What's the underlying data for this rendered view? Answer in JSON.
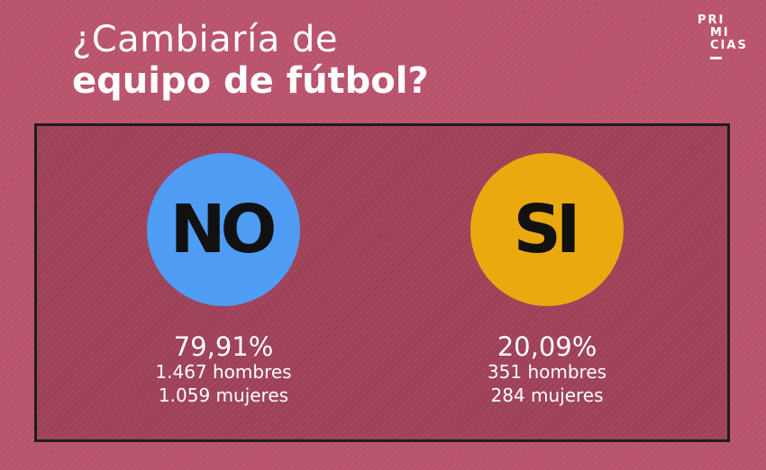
{
  "title": {
    "line1": "¿Cambiaría de",
    "line2": "equipo de fútbol?"
  },
  "logo": {
    "line1": "PRI",
    "line2": "MI",
    "line3": "CIAS"
  },
  "options": [
    {
      "label": "NO",
      "percent": "79,91%",
      "men": "1.467 hombres",
      "women": "1.059 mujeres",
      "color": "#4f9cf5"
    },
    {
      "label": "SI",
      "percent": "20,09%",
      "men": "351 hombres",
      "women": "284 mujeres",
      "color": "#eca90f"
    }
  ],
  "colors": {
    "background": "#b9536b",
    "panel": "#9e4158",
    "border": "#1d1d1d",
    "text": "#ffffff"
  }
}
